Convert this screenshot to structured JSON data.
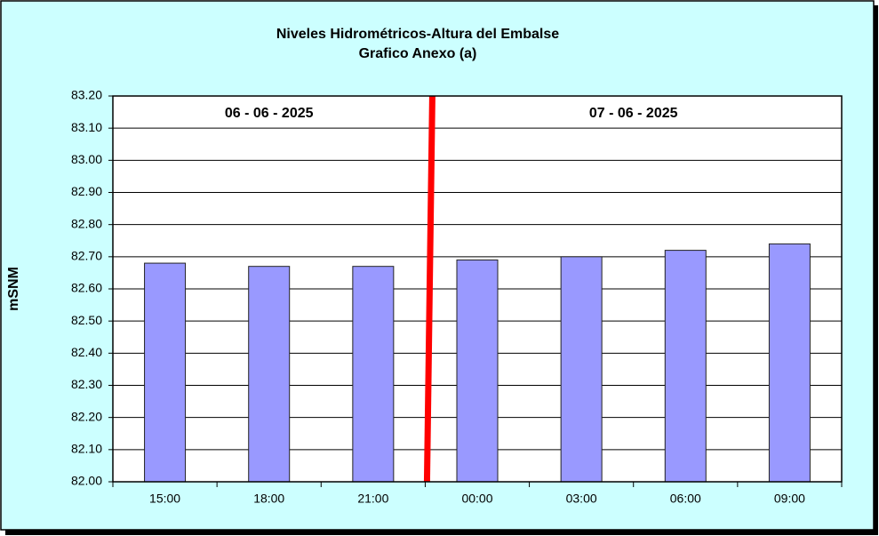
{
  "chart_data": {
    "type": "bar",
    "title": "Niveles Hidrométricos-Altura del Embalse",
    "subtitle": "Grafico Anexo (a)",
    "y_label": "mSNM",
    "annotations": [
      "06 - 06 - 2025",
      "07 - 06 - 2025"
    ],
    "categories": [
      "15:00",
      "18:00",
      "21:00",
      "00:00",
      "03:00",
      "06:00",
      "09:00"
    ],
    "values": [
      82.68,
      82.67,
      82.67,
      82.69,
      82.7,
      82.72,
      82.74
    ],
    "color": "#9999ff",
    "ylim": [
      82.0,
      83.2
    ],
    "yticks": [
      {
        "value": 82.0,
        "label": "82.00"
      },
      {
        "value": 82.1,
        "label": "82.10"
      },
      {
        "value": 82.2,
        "label": "82.20"
      },
      {
        "value": 82.3,
        "label": "82.30"
      },
      {
        "value": 82.4,
        "label": "82.40"
      },
      {
        "value": 82.5,
        "label": "82.50"
      },
      {
        "value": 82.6,
        "label": "82.60"
      },
      {
        "value": 82.7,
        "label": "82.70"
      },
      {
        "value": 82.8,
        "label": "82.80"
      },
      {
        "value": 82.9,
        "label": "82.90"
      },
      {
        "value": 83.0,
        "label": "83.00"
      },
      {
        "value": 83.1,
        "label": "83.10"
      },
      {
        "value": 83.2,
        "label": "83.20"
      }
    ],
    "grid": true
  }
}
